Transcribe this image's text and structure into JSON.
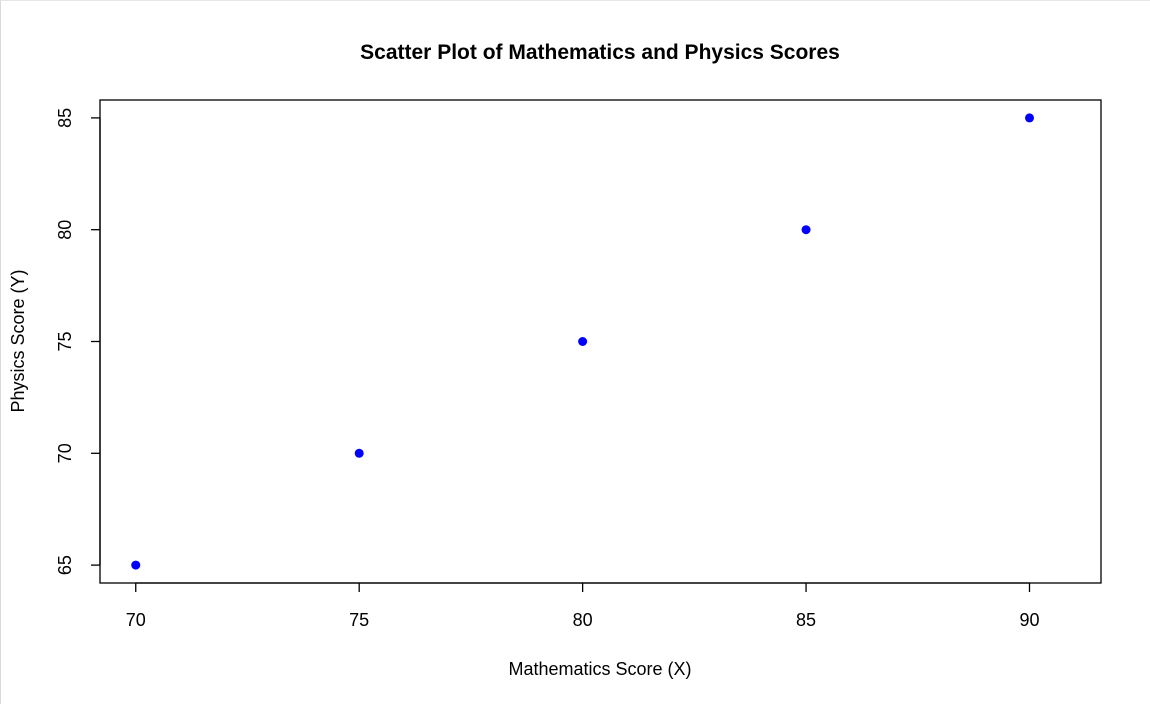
{
  "chart_data": {
    "type": "scatter",
    "title": "Scatter Plot of Mathematics and Physics Scores",
    "xlabel": "Mathematics Score (X)",
    "ylabel": "Physics Score (Y)",
    "x": [
      70,
      75,
      80,
      85,
      90
    ],
    "y": [
      65,
      70,
      75,
      80,
      85
    ],
    "xlim": [
      69.2,
      91.6
    ],
    "ylim": [
      64.2,
      85.8
    ],
    "xticks": [
      70,
      75,
      80,
      85,
      90
    ],
    "yticks": [
      65,
      70,
      75,
      80,
      85
    ],
    "grid": false,
    "legend": "none",
    "point_color": "#0000ff"
  }
}
